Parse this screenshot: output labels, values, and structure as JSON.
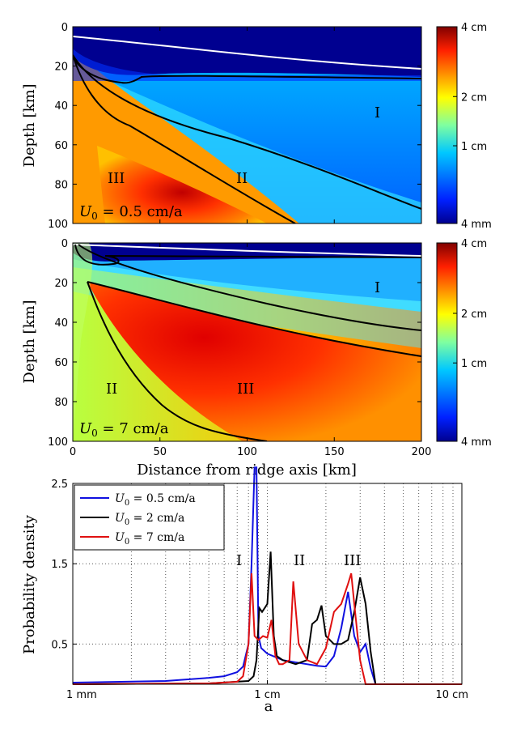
{
  "panels": [
    {
      "ylabel": "Depth [km]",
      "velocity_label": "U_0 = 0.5 cm/a",
      "colorbar_ticks": [
        "4 cm",
        "2 cm",
        "1 cm",
        "4 mm"
      ],
      "region_labels": [
        "I",
        "II",
        "III"
      ],
      "y_ticks": [
        "0",
        "20",
        "40",
        "60",
        "80",
        "100"
      ],
      "x_ticks": []
    },
    {
      "ylabel": "Depth [km]",
      "velocity_label": "U_0 = 7 cm/a",
      "colorbar_ticks": [
        "4 cm",
        "2 cm",
        "1 cm",
        "4 mm"
      ],
      "region_labels": [
        "I",
        "II",
        "III"
      ],
      "y_ticks": [
        "0",
        "20",
        "40",
        "60",
        "80",
        "100"
      ],
      "x_ticks": [
        "0",
        "50",
        "100",
        "150",
        "200"
      ],
      "xlabel": "Distance from ridge axis [km]"
    }
  ],
  "chart_data": {
    "type": "line",
    "xlabel": "a",
    "ylabel": "Probability density",
    "x_scale": "log",
    "x_tick_labels": [
      "1 mm",
      "1 cm",
      "10 cm"
    ],
    "y_tick_labels": [
      "0.5",
      "1.5",
      "2.5"
    ],
    "ylim": [
      0,
      2.5
    ],
    "xlim_mm": [
      1,
      100
    ],
    "region_labels": [
      "I",
      "II",
      "III"
    ],
    "series": [
      {
        "name": "U_0 = 0.5  cm/a",
        "legend_prefix": "U",
        "legend_sub": "0",
        "legend_rest": " = 0.5  cm/a",
        "color": "#1010e0",
        "x": [
          1,
          3,
          5,
          6,
          7,
          7.5,
          8,
          8.3,
          8.6,
          8.8,
          9.0,
          9.3,
          10,
          12,
          15,
          18,
          20,
          22,
          24,
          26,
          28,
          30,
          32,
          34,
          36,
          40,
          100
        ],
        "y": [
          0.02,
          0.04,
          0.08,
          0.1,
          0.15,
          0.22,
          0.5,
          1.5,
          2.7,
          2.7,
          0.6,
          0.45,
          0.38,
          0.3,
          0.26,
          0.23,
          0.22,
          0.35,
          0.7,
          1.15,
          0.6,
          0.4,
          0.5,
          0.2,
          0.0,
          0.0,
          0.0
        ]
      },
      {
        "name": "U_0 = 2  cm/a",
        "legend_prefix": "U",
        "legend_sub": "0",
        "legend_rest": " = 2  cm/a",
        "color": "#000000",
        "x": [
          1,
          5,
          8,
          8.5,
          8.8,
          9.1,
          9.4,
          9.7,
          10,
          10.4,
          10.8,
          11.2,
          12,
          14,
          16,
          17,
          18,
          19,
          20,
          22,
          24,
          26,
          28,
          30,
          32,
          34,
          36,
          40,
          100
        ],
        "y": [
          0.0,
          0.01,
          0.04,
          0.1,
          0.3,
          0.95,
          0.9,
          0.95,
          1.0,
          1.65,
          0.6,
          0.35,
          0.3,
          0.25,
          0.3,
          0.75,
          0.8,
          0.98,
          0.6,
          0.5,
          0.5,
          0.55,
          0.9,
          1.33,
          1.0,
          0.4,
          0.0,
          0.0,
          0.0
        ]
      },
      {
        "name": "U_0 = 7  cm/a",
        "legend_prefix": "U",
        "legend_sub": "0",
        "legend_rest": " = 7  cm/a",
        "color": "#e01010",
        "x": [
          1,
          5,
          7,
          7.5,
          8,
          8.3,
          8.6,
          9,
          9.5,
          10,
          10.5,
          11,
          11.5,
          12,
          13,
          13.6,
          14.5,
          16,
          18,
          20,
          22,
          24,
          26,
          27,
          28,
          30,
          32,
          34,
          100
        ],
        "y": [
          0.0,
          0.01,
          0.03,
          0.1,
          0.5,
          1.38,
          0.6,
          0.55,
          0.6,
          0.58,
          0.8,
          0.35,
          0.25,
          0.25,
          0.3,
          1.28,
          0.5,
          0.3,
          0.25,
          0.45,
          0.9,
          1.0,
          1.25,
          1.38,
          1.0,
          0.3,
          0.0,
          0.0,
          0.0
        ]
      }
    ]
  }
}
